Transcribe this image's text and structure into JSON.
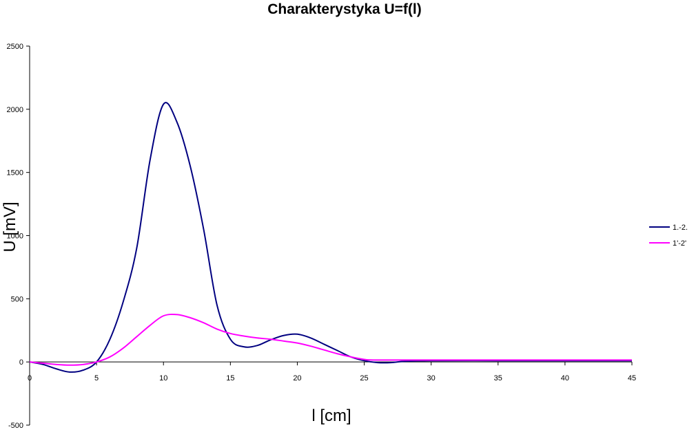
{
  "chart_data": {
    "type": "line",
    "title": "Charakterystyka U=f(l)",
    "xlabel": "l  [cm]",
    "ylabel": "U [mV]",
    "xlim": [
      0,
      45
    ],
    "ylim": [
      -500,
      2500
    ],
    "x_ticks": [
      0,
      5,
      10,
      15,
      20,
      25,
      30,
      35,
      40,
      45
    ],
    "y_ticks": [
      -500,
      0,
      500,
      1000,
      1500,
      2000,
      2500
    ],
    "grid": false,
    "legend_position": "right",
    "series": [
      {
        "name": "1.-2.",
        "color": "#000080",
        "points": [
          [
            0,
            0
          ],
          [
            1,
            -20
          ],
          [
            2,
            -55
          ],
          [
            3,
            -80
          ],
          [
            4,
            -65
          ],
          [
            5,
            0
          ],
          [
            6,
            180
          ],
          [
            7,
            480
          ],
          [
            8,
            900
          ],
          [
            9,
            1600
          ],
          [
            10,
            2040
          ],
          [
            11,
            1900
          ],
          [
            12,
            1550
          ],
          [
            13,
            1050
          ],
          [
            14,
            450
          ],
          [
            15,
            180
          ],
          [
            16,
            120
          ],
          [
            17,
            130
          ],
          [
            18,
            175
          ],
          [
            19,
            210
          ],
          [
            20,
            220
          ],
          [
            21,
            190
          ],
          [
            22,
            140
          ],
          [
            23,
            90
          ],
          [
            24,
            40
          ],
          [
            25,
            10
          ],
          [
            26,
            -5
          ],
          [
            27,
            -5
          ],
          [
            28,
            5
          ],
          [
            30,
            10
          ],
          [
            35,
            10
          ],
          [
            40,
            10
          ],
          [
            45,
            10
          ]
        ]
      },
      {
        "name": "1'-2'",
        "color": "#ff00ff",
        "points": [
          [
            0,
            0
          ],
          [
            1,
            -10
          ],
          [
            2,
            -20
          ],
          [
            3,
            -25
          ],
          [
            4,
            -20
          ],
          [
            5,
            0
          ],
          [
            6,
            40
          ],
          [
            7,
            110
          ],
          [
            8,
            200
          ],
          [
            9,
            290
          ],
          [
            10,
            365
          ],
          [
            11,
            375
          ],
          [
            12,
            350
          ],
          [
            13,
            310
          ],
          [
            14,
            260
          ],
          [
            15,
            225
          ],
          [
            16,
            205
          ],
          [
            17,
            190
          ],
          [
            18,
            180
          ],
          [
            19,
            165
          ],
          [
            20,
            150
          ],
          [
            21,
            125
          ],
          [
            22,
            95
          ],
          [
            23,
            65
          ],
          [
            24,
            40
          ],
          [
            25,
            20
          ],
          [
            26,
            15
          ],
          [
            30,
            15
          ],
          [
            35,
            15
          ],
          [
            40,
            15
          ],
          [
            45,
            15
          ]
        ]
      }
    ]
  }
}
